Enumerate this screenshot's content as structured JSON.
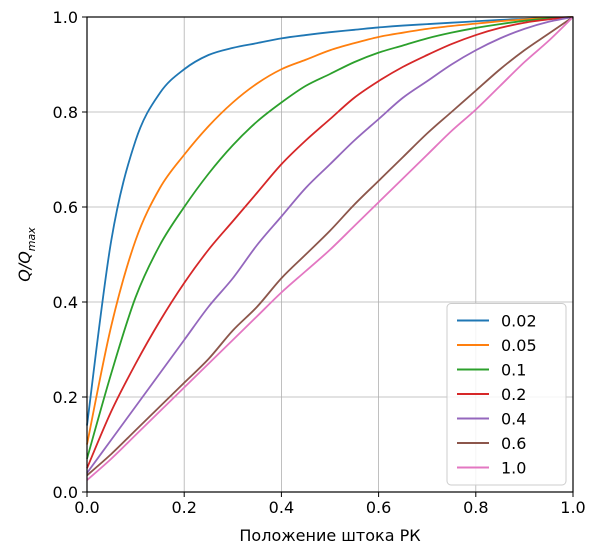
{
  "chart_data": {
    "type": "line",
    "xlabel": "Положение штока РК",
    "ylabel_main": "Q/Q",
    "ylabel_sub": "max",
    "xlim": [
      0,
      1
    ],
    "ylim": [
      0,
      1
    ],
    "x_ticks": [
      "0.0",
      "0.2",
      "0.4",
      "0.6",
      "0.8",
      "1.0"
    ],
    "y_ticks": [
      "0.0",
      "0.2",
      "0.4",
      "0.6",
      "0.8",
      "1.0"
    ],
    "grid": true,
    "legend_position": "bottom-right",
    "x": [
      0,
      0.05,
      0.1,
      0.15,
      0.2,
      0.25,
      0.3,
      0.35,
      0.4,
      0.45,
      0.5,
      0.55,
      0.6,
      0.65,
      0.7,
      0.75,
      0.8,
      0.85,
      0.9,
      0.95,
      1.0
    ],
    "series": [
      {
        "name": "0.02",
        "color": "#1f77b4",
        "values": [
          0.14,
          0.53,
          0.74,
          0.84,
          0.89,
          0.92,
          0.935,
          0.945,
          0.955,
          0.962,
          0.968,
          0.973,
          0.978,
          0.982,
          0.985,
          0.988,
          0.991,
          0.994,
          0.996,
          0.998,
          1.0
        ]
      },
      {
        "name": "0.05",
        "color": "#ff7f0e",
        "values": [
          0.1,
          0.35,
          0.53,
          0.64,
          0.71,
          0.77,
          0.82,
          0.86,
          0.89,
          0.91,
          0.93,
          0.945,
          0.958,
          0.967,
          0.975,
          0.981,
          0.986,
          0.991,
          0.995,
          0.998,
          1.0
        ]
      },
      {
        "name": "0.1",
        "color": "#2ca02c",
        "values": [
          0.07,
          0.25,
          0.41,
          0.52,
          0.6,
          0.67,
          0.73,
          0.78,
          0.82,
          0.855,
          0.88,
          0.905,
          0.925,
          0.94,
          0.955,
          0.967,
          0.977,
          0.985,
          0.992,
          0.997,
          1.0
        ]
      },
      {
        "name": "0.2",
        "color": "#d62728",
        "values": [
          0.05,
          0.17,
          0.27,
          0.36,
          0.44,
          0.51,
          0.57,
          0.63,
          0.69,
          0.74,
          0.785,
          0.83,
          0.865,
          0.895,
          0.92,
          0.943,
          0.962,
          0.977,
          0.988,
          0.995,
          1.0
        ]
      },
      {
        "name": "0.4",
        "color": "#9467bd",
        "values": [
          0.04,
          0.11,
          0.18,
          0.25,
          0.32,
          0.39,
          0.45,
          0.52,
          0.58,
          0.64,
          0.69,
          0.74,
          0.785,
          0.83,
          0.865,
          0.9,
          0.93,
          0.955,
          0.975,
          0.99,
          1.0
        ]
      },
      {
        "name": "0.6",
        "color": "#8c564b",
        "values": [
          0.035,
          0.08,
          0.13,
          0.18,
          0.23,
          0.28,
          0.34,
          0.39,
          0.45,
          0.5,
          0.55,
          0.605,
          0.655,
          0.705,
          0.755,
          0.8,
          0.845,
          0.89,
          0.93,
          0.965,
          1.0
        ]
      },
      {
        "name": "1.0",
        "color": "#e377c2",
        "values": [
          0.025,
          0.07,
          0.12,
          0.17,
          0.22,
          0.27,
          0.32,
          0.37,
          0.42,
          0.465,
          0.51,
          0.56,
          0.61,
          0.66,
          0.71,
          0.76,
          0.805,
          0.855,
          0.905,
          0.95,
          1.0
        ]
      }
    ]
  }
}
